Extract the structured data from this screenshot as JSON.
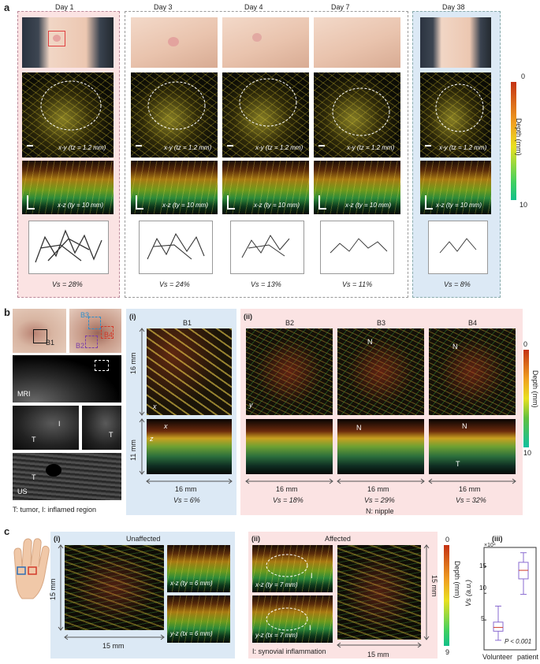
{
  "panel_a": {
    "letter": "a",
    "days": [
      "Day 1",
      "Day 3",
      "Day 4",
      "Day 7",
      "Day 38"
    ],
    "xy_labels": [
      "x-y (tz = 1.2 mm)",
      "x-y (tz = 1.2 mm)",
      "x-y (tz = 1.2 mm)",
      "x-y (tz = 1.2 mm)",
      "x-y (tz = 1.2 mm)"
    ],
    "xz_labels": [
      "x-z (ty = 10 mm)",
      "x-z (ty = 10 mm)",
      "x-z (ty = 10 mm)",
      "x-z (ty = 10 mm)",
      "x-z (ty = 10 mm)"
    ],
    "vs": [
      "Vs = 28%",
      "Vs = 24%",
      "Vs = 13%",
      "Vs = 11%",
      "Vs = 8%"
    ],
    "depth_title": "Depth (mm)",
    "depth_top": "0",
    "depth_bottom": "10",
    "colors": {
      "day1_bg": "#fbe3e3",
      "recovery_bg": "#ffffff",
      "day38_bg": "#dce9f5"
    }
  },
  "panel_b": {
    "letter": "b",
    "photo_labels": {
      "b1": "B1",
      "b2": "B2",
      "b3": "B3",
      "b4": "B4"
    },
    "mri_label": "MRI",
    "us_label": "US",
    "t_label": "T",
    "i_label": "I",
    "legend_left": "T: tumor, I: inflamed region",
    "sub_i": "(i)",
    "sub_ii": "(ii)",
    "titles": [
      "B1",
      "B2",
      "B3",
      "B4"
    ],
    "title_colors": [
      "#222222",
      "#7b3fa8",
      "#2f8ec9",
      "#d23a2a"
    ],
    "dim_16": "16 mm",
    "dim_11": "11 mm",
    "bottom_dims": [
      "16 mm",
      "16 mm",
      "16 mm",
      "16 mm"
    ],
    "vs": [
      "Vs = 6%",
      "Vs = 18%",
      "Vs = 29%",
      "Vs = 32%"
    ],
    "nipple_legend": "N: nipple",
    "n_label": "N",
    "depth_title": "Depth (mm)",
    "depth_top": "0",
    "depth_bottom": "10",
    "axis_x": "x",
    "axis_y": "y",
    "axis_z": "z"
  },
  "panel_c": {
    "letter": "c",
    "sub_i": "(i)",
    "sub_ii": "(ii)",
    "sub_iii": "(iii)",
    "unaffected": "Unaffected",
    "affected": "Affected",
    "dim_15a": "15 mm",
    "dim_15b": "15 mm",
    "dim_15c": "15 mm",
    "dim_15d": "15 mm",
    "xz_i": "x-z (ty = 6 mm)",
    "yz_i": "y-z (tx = 6 mm)",
    "xz_ii": "x-z (ty = 7 mm)",
    "yz_ii": "y-z (tx = 7 mm)",
    "i_tag": "I",
    "legend": "I: synovial inflammation",
    "depth_title": "Depth (mm)",
    "depth_top": "0",
    "depth_bottom": "9",
    "box": {
      "ylabel": "Vs (a.u.)",
      "exponent": "×10⁴",
      "ticks": [
        "15",
        "10",
        "5"
      ],
      "categories": [
        "Volunteer",
        "patient"
      ],
      "p_value": "P < 0.001"
    }
  },
  "chart_data": {
    "type": "box",
    "title": "",
    "xlabel": "",
    "ylabel": "Vs (a.u.)",
    "categories": [
      "Volunteer",
      "patient"
    ],
    "yscale_factor": 10000,
    "ylim": [
      0,
      18
    ],
    "yticks": [
      5,
      10,
      15
    ],
    "series": [
      {
        "name": "Volunteer",
        "whisker_low": 1.2,
        "q1": 2.9,
        "median": 3.6,
        "q3": 4.6,
        "whisker_high": 7.6
      },
      {
        "name": "patient",
        "whisker_low": 9.8,
        "q1": 12.7,
        "median": 14.3,
        "q3": 15.8,
        "whisker_high": 17.6
      }
    ],
    "annotation": "P < 0.001",
    "box_color": "#8a6bd0"
  }
}
